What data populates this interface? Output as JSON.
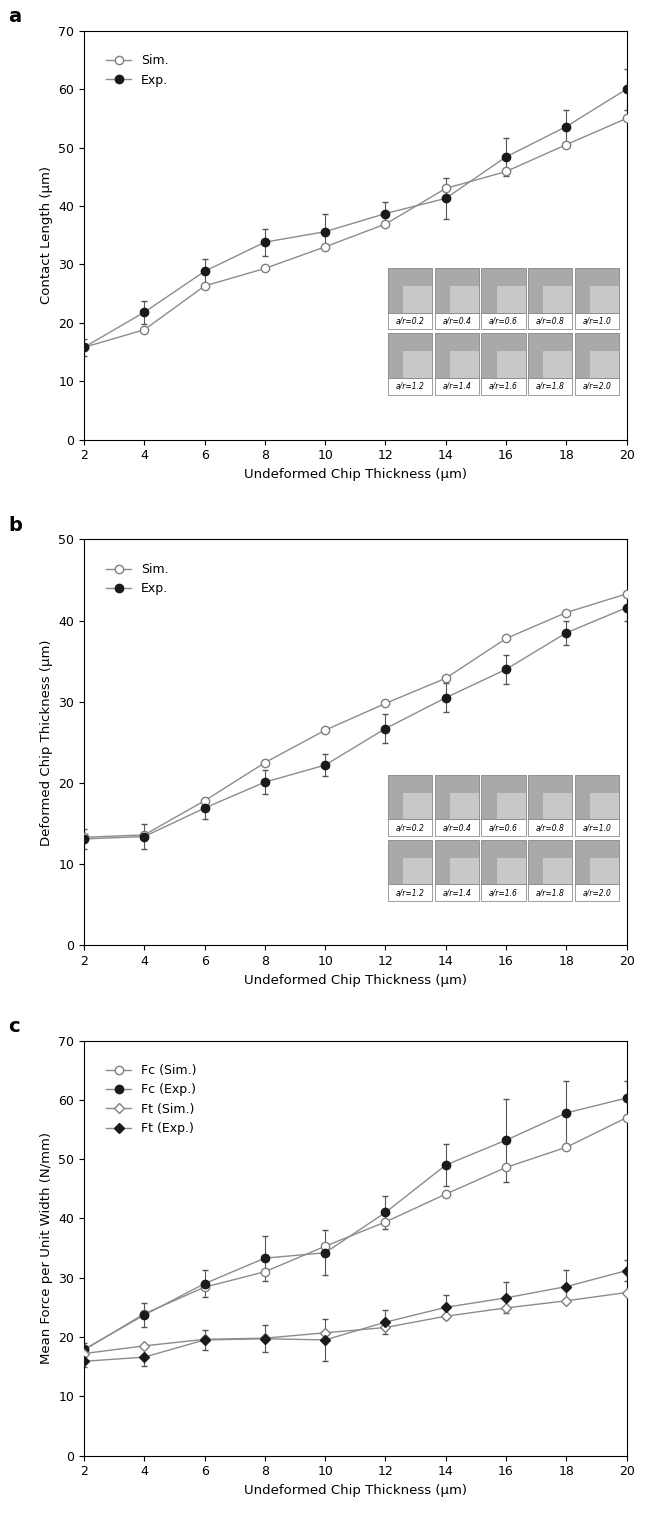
{
  "chart_data": [
    {
      "type": "line",
      "title": "a",
      "x_label": "Undeformed Chip Thickness (µm)",
      "y_label": "Contact Length (µm)",
      "x": [
        2,
        4,
        6,
        8,
        10,
        12,
        14,
        16,
        18,
        20
      ],
      "xlim": [
        2,
        20
      ],
      "xticks": [
        2,
        4,
        6,
        8,
        10,
        12,
        14,
        16,
        18,
        20
      ],
      "ylim": [
        0,
        70
      ],
      "yticks": [
        0,
        10,
        20,
        30,
        40,
        50,
        60,
        70
      ],
      "legend": "upper left",
      "grid": false,
      "annotations": [
        "a/r=0.2",
        "a/r=0.4",
        "a/r=0.6",
        "a/r=0.8",
        "a/r=1.0",
        "a/r=1.2",
        "a/r=1.4",
        "a/r=1.6",
        "a/r=1.8",
        "a/r=2.0"
      ],
      "series": [
        {
          "name": "Sim.",
          "color": "#7f7f7f",
          "marker": "circle_open",
          "values": [
            15.8,
            18.8,
            26.3,
            29.3,
            33.0,
            36.9,
            43.0,
            45.9,
            50.5,
            55.0
          ]
        },
        {
          "name": "Exp.",
          "color": "#1a1a1a",
          "marker": "circle",
          "values": [
            15.8,
            21.8,
            28.8,
            33.8,
            35.6,
            38.7,
            41.3,
            48.4,
            53.6,
            60.0
          ],
          "errors": [
            1.5,
            2.0,
            2.2,
            2.3,
            3.0,
            2.0,
            3.5,
            3.3,
            2.8,
            3.5
          ]
        }
      ]
    },
    {
      "type": "line",
      "title": "b",
      "x_label": "Undeformed Chip Thickness (µm)",
      "y_label": "Deformed Chip Thickness (µm)",
      "x": [
        2,
        4,
        6,
        8,
        10,
        12,
        14,
        16,
        18,
        20
      ],
      "xlim": [
        2,
        20
      ],
      "xticks": [
        2,
        4,
        6,
        8,
        10,
        12,
        14,
        16,
        18,
        20
      ],
      "ylim": [
        0,
        50
      ],
      "yticks": [
        0,
        10,
        20,
        30,
        40,
        50
      ],
      "legend": "upper left",
      "grid": false,
      "annotations": [
        "a/r=0.2",
        "a/r=0.4",
        "a/r=0.6",
        "a/r=0.8",
        "a/r=1.0",
        "a/r=1.2",
        "a/r=1.4",
        "a/r=1.6",
        "a/r=1.8",
        "a/r=2.0"
      ],
      "series": [
        {
          "name": "Sim.",
          "color": "#7f7f7f",
          "marker": "circle_open",
          "values": [
            13.3,
            13.6,
            17.8,
            22.5,
            26.5,
            29.8,
            32.9,
            37.8,
            41.0,
            43.3
          ]
        },
        {
          "name": "Exp.",
          "color": "#1a1a1a",
          "marker": "circle",
          "values": [
            13.1,
            13.4,
            16.9,
            20.1,
            22.2,
            26.7,
            30.5,
            34.0,
            38.5,
            41.6
          ],
          "errors": [
            1.2,
            1.5,
            1.3,
            1.5,
            1.4,
            1.8,
            1.8,
            1.8,
            1.5,
            1.7
          ]
        }
      ]
    },
    {
      "type": "line",
      "title": "c",
      "x_label": "Undeformed Chip Thickness (µm)",
      "y_label": "Mean Force per Unit Width (N/mm)",
      "x": [
        2,
        4,
        6,
        8,
        10,
        12,
        14,
        16,
        18,
        20
      ],
      "xlim": [
        2,
        20
      ],
      "xticks": [
        2,
        4,
        6,
        8,
        10,
        12,
        14,
        16,
        18,
        20
      ],
      "ylim": [
        0,
        70
      ],
      "yticks": [
        0,
        10,
        20,
        30,
        40,
        50,
        60,
        70
      ],
      "legend": "upper left",
      "grid": false,
      "series": [
        {
          "name": "Fc (Sim.)",
          "color": "#7f7f7f",
          "marker": "circle_open",
          "values": [
            17.8,
            23.9,
            28.4,
            31.0,
            35.3,
            39.4,
            44.1,
            48.6,
            52.0,
            57.0
          ]
        },
        {
          "name": "Fc (Exp.)",
          "color": "#1a1a1a",
          "marker": "circle",
          "values": [
            17.9,
            23.7,
            29.0,
            33.3,
            34.2,
            41.0,
            49.0,
            53.2,
            57.8,
            60.3
          ],
          "errors": [
            1.0,
            2.0,
            2.3,
            3.8,
            3.8,
            2.8,
            3.5,
            7.0,
            5.3,
            2.8
          ]
        },
        {
          "name": "Ft (Sim.)",
          "color": "#7f7f7f",
          "marker": "diamond_open",
          "values": [
            17.2,
            18.5,
            19.6,
            19.8,
            20.7,
            21.6,
            23.5,
            24.9,
            26.1,
            27.5
          ]
        },
        {
          "name": "Ft (Exp.)",
          "color": "#1a1a1a",
          "marker": "diamond",
          "values": [
            15.9,
            16.6,
            19.5,
            19.7,
            19.5,
            22.5,
            25.0,
            26.6,
            28.5,
            31.2
          ],
          "errors": [
            1.0,
            1.5,
            1.7,
            2.3,
            3.5,
            2.0,
            2.0,
            2.6,
            2.8,
            1.8
          ]
        }
      ]
    }
  ]
}
